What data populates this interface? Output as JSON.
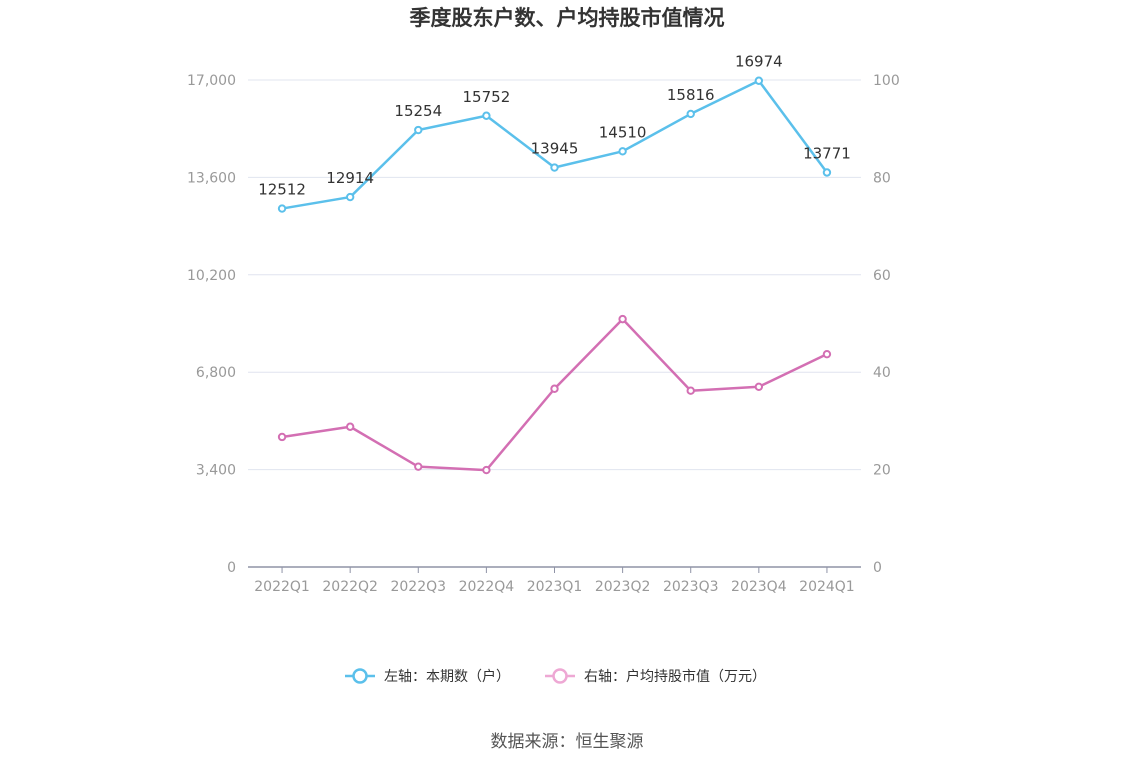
{
  "chart_data": {
    "type": "line",
    "title": "季度股东户数、户均持股市值情况",
    "categories": [
      "2022Q1",
      "2022Q2",
      "2022Q3",
      "2022Q4",
      "2023Q1",
      "2023Q2",
      "2023Q3",
      "2023Q4",
      "2024Q1"
    ],
    "left_axis": {
      "ylim": [
        0,
        17000
      ],
      "ticks": [
        "0",
        "3,400",
        "6,800",
        "10,200",
        "13,600",
        "17,000"
      ],
      "tick_values": [
        0,
        3400,
        6800,
        10200,
        13600,
        17000
      ]
    },
    "right_axis": {
      "ylim": [
        0,
        100
      ],
      "ticks": [
        "0",
        "20",
        "40",
        "60",
        "80",
        "100"
      ],
      "tick_values": [
        0,
        20,
        40,
        60,
        80,
        100
      ]
    },
    "grid": true,
    "legend_position": "bottom",
    "series": [
      {
        "name": "左轴：本期数（户）",
        "axis": "left",
        "color": "#5bc0eb",
        "values": [
          12512,
          12914,
          15254,
          15752,
          13945,
          14510,
          15816,
          16974,
          13771
        ],
        "labels": [
          "12512",
          "12914",
          "15254",
          "15752",
          "13945",
          "14510",
          "15816",
          "16974",
          "13771"
        ]
      },
      {
        "name": "右轴：户均持股市值（万元）",
        "axis": "right",
        "color": "#d36fb3",
        "legend_color": "#eea8d4",
        "values": [
          26.7,
          28.8,
          20.6,
          19.9,
          36.6,
          50.9,
          36.2,
          37.0,
          43.7
        ]
      }
    ],
    "source": "数据来源：恒生聚源"
  }
}
